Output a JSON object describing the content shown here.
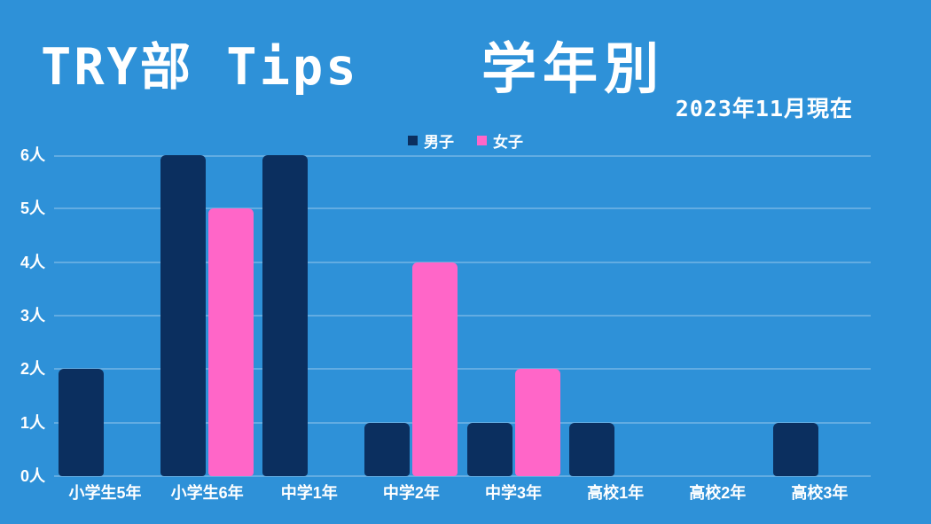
{
  "page": {
    "background_color": "#2e91d8",
    "text_color": "#ffffff",
    "title_left": "TRY部 Tips",
    "title_right": "学年別",
    "subtitle": "2023年11月現在"
  },
  "legend": {
    "items": [
      {
        "label": "男子",
        "color": "#0b2f5f"
      },
      {
        "label": "女子",
        "color": "#ff66c8"
      }
    ]
  },
  "chart_data": {
    "type": "bar",
    "title": "TRY部 Tips 学年別",
    "subtitle": "2023年11月現在",
    "categories": [
      "小学生5年",
      "小学生6年",
      "中学1年",
      "中学2年",
      "中学3年",
      "高校1年",
      "高校2年",
      "高校3年"
    ],
    "series": [
      {
        "name": "男子",
        "color": "#0b2f5f",
        "values": [
          2,
          6,
          6,
          1,
          1,
          1,
          0,
          1
        ]
      },
      {
        "name": "女子",
        "color": "#ff66c8",
        "values": [
          0,
          5,
          0,
          4,
          2,
          0,
          0,
          0
        ]
      }
    ],
    "yticks": [
      "0人",
      "1人",
      "2人",
      "3人",
      "4人",
      "5人",
      "6人"
    ],
    "ylim": [
      0,
      6
    ],
    "unit_suffix": "人",
    "grid": true,
    "gridline_color": "rgba(255,255,255,0.25)",
    "legend_position": "top-center",
    "background_color": "#2e91d8",
    "text_color": "#ffffff"
  }
}
